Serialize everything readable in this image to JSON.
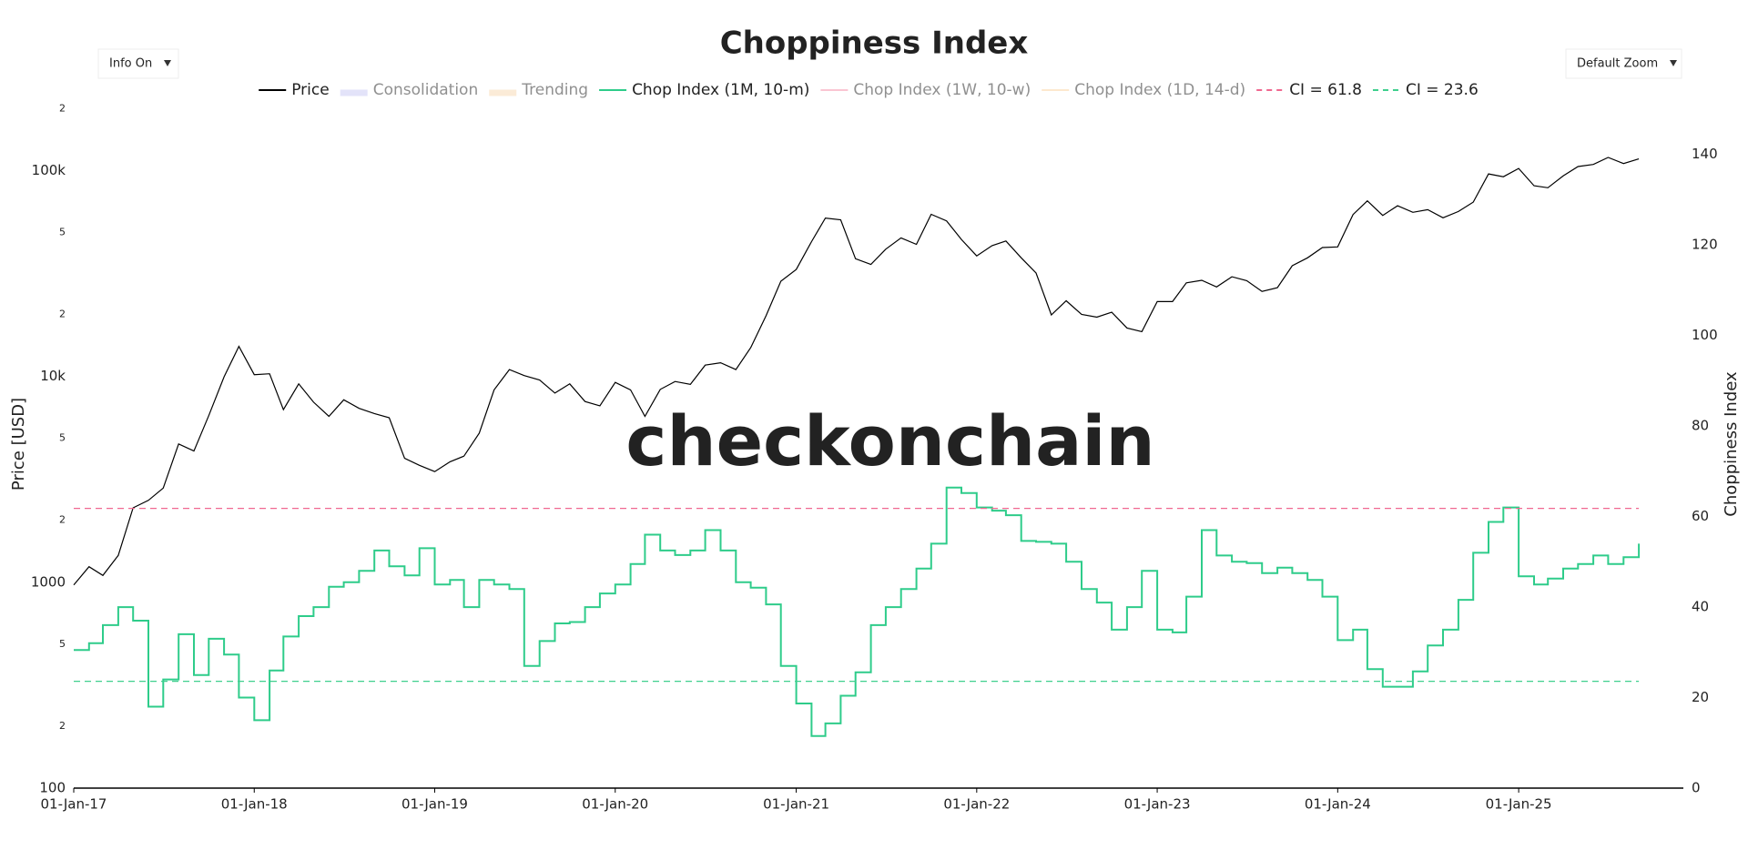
{
  "chart_data": {
    "type": "line",
    "title": "Choppiness Index",
    "controls": {
      "info": "Info On",
      "zoom": "Default Zoom"
    },
    "watermark": "checkonchain",
    "y_label": "Price [USD]",
    "y2_label": "Choppiness Index",
    "log_y": true,
    "legend": "top",
    "x": [
      "2017-01-01",
      "2017-02-01",
      "2017-03-01",
      "2017-04-01",
      "2017-05-01",
      "2017-06-01",
      "2017-07-01",
      "2017-08-01",
      "2017-09-01",
      "2017-10-01",
      "2017-11-01",
      "2017-12-01",
      "2018-01-01",
      "2018-02-01",
      "2018-03-01",
      "2018-04-01",
      "2018-05-01",
      "2018-06-01",
      "2018-07-01",
      "2018-08-01",
      "2018-09-01",
      "2018-10-01",
      "2018-11-01",
      "2018-12-01",
      "2019-01-01",
      "2019-02-01",
      "2019-03-01",
      "2019-04-01",
      "2019-05-01",
      "2019-06-01",
      "2019-07-01",
      "2019-08-01",
      "2019-09-01",
      "2019-10-01",
      "2019-11-01",
      "2019-12-01",
      "2020-01-01",
      "2020-02-01",
      "2020-03-01",
      "2020-04-01",
      "2020-05-01",
      "2020-06-01",
      "2020-07-01",
      "2020-08-01",
      "2020-09-01",
      "2020-10-01",
      "2020-11-01",
      "2020-12-01",
      "2021-01-01",
      "2021-02-01",
      "2021-03-01",
      "2021-04-01",
      "2021-05-01",
      "2021-06-01",
      "2021-07-01",
      "2021-08-01",
      "2021-09-01",
      "2021-10-01",
      "2021-11-01",
      "2021-12-01",
      "2022-01-01",
      "2022-02-01",
      "2022-03-01",
      "2022-04-01",
      "2022-05-01",
      "2022-06-01",
      "2022-07-01",
      "2022-08-01",
      "2022-09-01",
      "2022-10-01",
      "2022-11-01",
      "2022-12-01",
      "2023-01-01",
      "2023-02-01",
      "2023-03-01",
      "2023-04-01",
      "2023-05-01",
      "2023-06-01",
      "2023-07-01",
      "2023-08-01",
      "2023-09-01",
      "2023-10-01",
      "2023-11-01",
      "2023-12-01",
      "2024-01-01",
      "2024-02-01",
      "2024-03-01",
      "2024-04-01",
      "2024-05-01",
      "2024-06-01",
      "2024-07-01",
      "2024-08-01",
      "2024-09-01",
      "2024-10-01",
      "2024-11-01",
      "2024-12-01",
      "2025-01-01",
      "2025-02-01",
      "2025-03-01",
      "2025-04-01",
      "2025-05-01",
      "2025-06-01",
      "2025-07-01",
      "2025-08-01",
      "2025-09-01"
    ],
    "series": [
      {
        "name": "Price",
        "color": "#000000",
        "kind": "line",
        "values": [
          970,
          1190,
          1080,
          1350,
          2300,
          2500,
          2870,
          4700,
          4340,
          6450,
          9950,
          14000,
          10200,
          10300,
          6900,
          9200,
          7500,
          6400,
          7700,
          7000,
          6600,
          6300,
          4000,
          3700,
          3450,
          3850,
          4100,
          5300,
          8600,
          10800,
          10100,
          9600,
          8300,
          9200,
          7550,
          7200,
          9350,
          8600,
          6400,
          8650,
          9450,
          9150,
          11350,
          11650,
          10800,
          13800,
          19700,
          29000,
          33100,
          45200,
          58800,
          57700,
          37300,
          35000,
          41500,
          47100,
          43800,
          61300,
          57000,
          46300,
          38500,
          43200,
          45500,
          37700,
          31800,
          19900,
          23300,
          20000,
          19400,
          20500,
          17200,
          16500,
          23100,
          23100,
          28500,
          29300,
          27200,
          30500,
          29200,
          25900,
          27000,
          34500,
          37700,
          42300,
          42600,
          61200,
          71300,
          60600,
          67500,
          62700,
          64600,
          59000,
          63300,
          70300,
          96400,
          93400,
          102400,
          84400,
          82500,
          94200,
          104600,
          107100,
          115800,
          108200,
          114000
        ]
      },
      {
        "name": "Consolidation",
        "color": "#c9c9f5",
        "kind": "band",
        "visible": false
      },
      {
        "name": "Trending",
        "color": "#f8d9b0",
        "kind": "band",
        "visible": false
      },
      {
        "name": "Chop Index (1M, 10-m)",
        "color": "#2ecc8a",
        "kind": "step",
        "axis": "y2",
        "values": [
          30.5,
          32,
          36,
          40,
          37,
          18,
          24,
          34,
          25,
          33,
          29.5,
          20,
          15,
          26,
          33.5,
          38,
          40,
          44.5,
          45.5,
          48,
          52.5,
          49,
          47,
          53,
          45,
          46,
          40,
          46,
          45,
          44,
          27,
          32.5,
          36.4,
          36.7,
          40,
          43,
          45,
          49.5,
          56,
          52.5,
          51.5,
          52.5,
          57,
          52.5,
          45.5,
          44.3,
          40.6,
          27,
          18.7,
          11.5,
          14.3,
          20.4,
          25.6,
          36,
          40,
          44,
          48.5,
          54,
          66.4,
          65.2,
          62,
          61.3,
          60.3,
          54.6,
          54.4,
          54,
          50,
          44,
          41,
          35,
          40,
          48,
          35,
          34.4,
          42.3,
          57,
          51.4,
          50,
          49.7,
          47.5,
          48.7,
          47.5,
          46,
          42.3,
          32.7,
          35,
          26.3,
          22.4,
          22.4,
          25.8,
          31.5,
          35,
          41.6,
          52,
          58.8,
          62,
          46.8,
          45,
          46.3,
          48.5,
          49.5,
          51.4,
          49.5,
          51,
          54
        ]
      },
      {
        "name": "Chop Index (1W, 10-w)",
        "color": "#f78da7",
        "kind": "line",
        "visible": false
      },
      {
        "name": "Chop Index (1D, 14-d)",
        "color": "#fcd29f",
        "kind": "line",
        "visible": false
      },
      {
        "name": "CI = 61.8",
        "color": "#f06890",
        "kind": "hline",
        "axis": "y2",
        "value": 61.8
      },
      {
        "name": "CI = 23.6",
        "color": "#3fcf8e",
        "kind": "hline",
        "axis": "y2",
        "value": 23.6
      }
    ],
    "xlim": [
      "2017-01-01",
      "2025-11-30"
    ],
    "xticks": [
      {
        "value": "2017-01-01",
        "label": "01-Jan-17"
      },
      {
        "value": "2018-01-01",
        "label": "01-Jan-18"
      },
      {
        "value": "2019-01-01",
        "label": "01-Jan-19"
      },
      {
        "value": "2020-01-01",
        "label": "01-Jan-20"
      },
      {
        "value": "2021-01-01",
        "label": "01-Jan-21"
      },
      {
        "value": "2022-01-01",
        "label": "01-Jan-22"
      },
      {
        "value": "2023-01-01",
        "label": "01-Jan-23"
      },
      {
        "value": "2024-01-01",
        "label": "01-Jan-24"
      },
      {
        "value": "2025-01-01",
        "label": "01-Jan-25"
      }
    ],
    "ylim": [
      100,
      220000
    ],
    "yticks": [
      100,
      {
        "value": 200,
        "label": "2"
      },
      {
        "value": 500,
        "label": "5"
      },
      1000,
      {
        "value": 2000,
        "label": "2"
      },
      {
        "value": 5000,
        "label": "5"
      },
      {
        "value": 10000,
        "label": "10k"
      },
      {
        "value": 20000,
        "label": "2"
      },
      {
        "value": 50000,
        "label": "5"
      },
      {
        "value": 100000,
        "label": "100k"
      },
      {
        "value": 200000,
        "label": "2"
      }
    ],
    "y2lim": [
      0,
      152
    ],
    "y2ticks": [
      0,
      20,
      40,
      60,
      80,
      100,
      120,
      140
    ],
    "y2_color": "#1a73e8"
  }
}
